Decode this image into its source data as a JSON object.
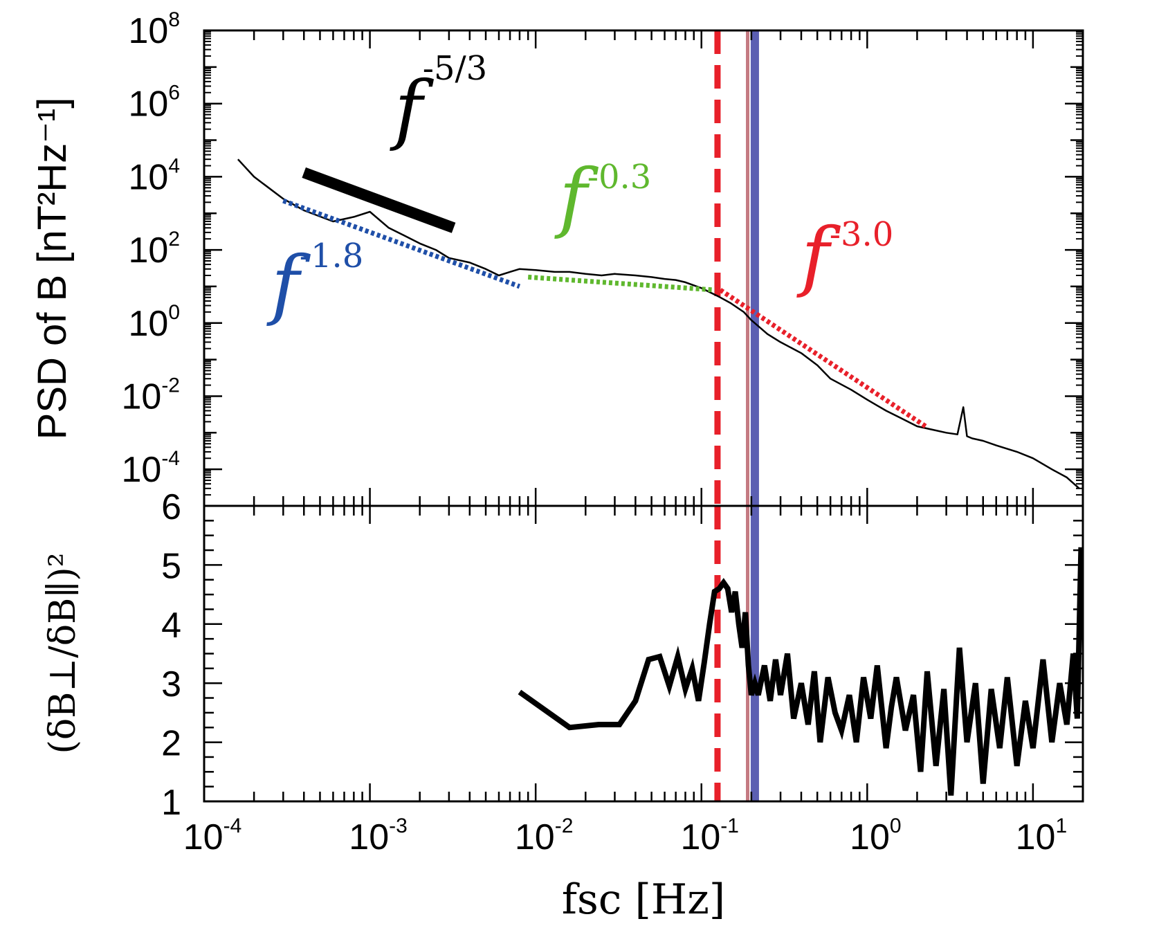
{
  "colors": {
    "blue_fit": "#1f4fa8",
    "green_fit": "#5fb82e",
    "red_fit": "#e8202a",
    "red_vline": "#e8202a",
    "pink_vline": "#c47a82",
    "purple_vline": "#5b5fb2",
    "psd_trace": "#000000"
  },
  "chart_data": [
    {
      "type": "line",
      "panel": "top",
      "ylabel": "PSD of B [nT²Hz⁻¹]",
      "xscale": "log",
      "yscale": "log",
      "xlim": [
        0.0001,
        20
      ],
      "ylim": [
        1e-05,
        100000000
      ],
      "yticks": [
        {
          "base": "10",
          "exp": "8",
          "value": 100000000
        },
        {
          "base": "10",
          "exp": "6",
          "value": 1000000
        },
        {
          "base": "10",
          "exp": "4",
          "value": 10000
        },
        {
          "base": "10",
          "exp": "2",
          "value": 100
        },
        {
          "base": "10",
          "exp": "0",
          "value": 1
        },
        {
          "base": "10",
          "exp": "-2",
          "value": 0.01
        },
        {
          "base": "10",
          "exp": "-4",
          "value": 0.0001
        }
      ],
      "series": [
        {
          "color": "#000000",
          "x": [
            0.00016,
            0.0002,
            0.0003,
            0.0004,
            0.0006,
            0.0008,
            0.001,
            0.0013,
            0.0016,
            0.002,
            0.0025,
            0.003,
            0.004,
            0.005,
            0.006,
            0.007,
            0.008,
            0.01,
            0.013,
            0.016,
            0.02,
            0.025,
            0.03,
            0.04,
            0.05,
            0.06,
            0.07,
            0.08,
            0.1,
            0.12,
            0.13,
            0.15,
            0.18,
            0.2,
            0.25,
            0.3,
            0.4,
            0.5,
            0.6,
            0.8,
            1.0,
            1.3,
            1.6,
            2.0,
            2.5,
            3.0,
            3.5,
            3.8,
            4.0,
            4.3,
            5.0,
            6.0,
            8.0,
            10.0,
            13.0,
            16.0,
            19.0
          ],
          "y": [
            30000,
            10000,
            2500,
            1200,
            600,
            800,
            1100,
            400,
            250,
            150,
            100,
            60,
            45,
            30,
            20,
            25,
            30,
            28,
            25,
            25,
            22,
            20,
            22,
            20,
            18,
            16,
            15,
            13,
            9,
            6,
            5,
            3.5,
            2.0,
            1.2,
            0.5,
            0.3,
            0.15,
            0.07,
            0.03,
            0.015,
            0.008,
            0.004,
            0.0025,
            0.0015,
            0.0012,
            0.001,
            0.0009,
            0.005,
            0.0008,
            0.0007,
            0.0006,
            0.00045,
            0.0003,
            0.0002,
            0.0001,
            6e-05,
            3e-05
          ]
        },
        {
          "name": "f^-1.8",
          "color": "#1f4fa8",
          "style": "dotted",
          "x": [
            0.0003,
            0.008
          ],
          "y": [
            2200,
            10
          ]
        },
        {
          "name": "f^-0.3",
          "color": "#5fb82e",
          "style": "dotted",
          "x": [
            0.009,
            0.12
          ],
          "y": [
            18,
            8
          ]
        },
        {
          "name": "f^-3.0",
          "color": "#e8202a",
          "style": "dotted",
          "x": [
            0.13,
            2.3
          ],
          "y": [
            8,
            0.0014
          ]
        },
        {
          "name": "f^-5/3",
          "color": "#000000",
          "style": "thick",
          "x": [
            0.0004,
            0.0032
          ],
          "y": [
            13000,
            400
          ]
        }
      ],
      "annotations": [
        {
          "text": "f",
          "sup": "-5/3",
          "color": "#000000"
        },
        {
          "text": "f",
          "sup": "-1.8",
          "color": "#1f4fa8"
        },
        {
          "text": "f",
          "sup": "-0.3",
          "color": "#5fb82e"
        },
        {
          "text": "f",
          "sup": "-3.0",
          "color": "#e8202a"
        }
      ],
      "vlines": [
        {
          "x": 0.125,
          "color": "#e8202a",
          "style": "dashed"
        },
        {
          "x": 0.19,
          "color": "#c47a82",
          "style": "solid"
        },
        {
          "x": 0.21,
          "color": "#5b5fb2",
          "style": "solid"
        }
      ]
    },
    {
      "type": "line",
      "panel": "bottom",
      "ylabel": "(δB⊥/δB∥)²",
      "xlabel": "fsc [Hz]",
      "xscale": "log",
      "xlim": [
        0.0001,
        20
      ],
      "ylim": [
        1,
        6
      ],
      "yticks": [
        "6",
        "5",
        "4",
        "3",
        "2",
        "1"
      ],
      "xticks": [
        {
          "base": "10",
          "exp": "-4",
          "value": 0.0001
        },
        {
          "base": "10",
          "exp": "-3",
          "value": 0.001
        },
        {
          "base": "10",
          "exp": "-2",
          "value": 0.01
        },
        {
          "base": "10",
          "exp": "-1",
          "value": 0.1
        },
        {
          "base": "10",
          "exp": "0",
          "value": 1
        },
        {
          "base": "10",
          "exp": "1",
          "value": 10
        }
      ],
      "series": [
        {
          "color": "#000000",
          "x": [
            0.008,
            0.016,
            0.024,
            0.032,
            0.04,
            0.048,
            0.056,
            0.064,
            0.072,
            0.08,
            0.088,
            0.096,
            0.104,
            0.112,
            0.12,
            0.128,
            0.136,
            0.144,
            0.152,
            0.16,
            0.168,
            0.176,
            0.184,
            0.192,
            0.2,
            0.21,
            0.22,
            0.24,
            0.26,
            0.28,
            0.3,
            0.33,
            0.36,
            0.4,
            0.44,
            0.48,
            0.52,
            0.58,
            0.64,
            0.7,
            0.78,
            0.86,
            0.95,
            1.05,
            1.15,
            1.3,
            1.4,
            1.5,
            1.7,
            1.9,
            2.1,
            2.3,
            2.6,
            2.9,
            3.2,
            3.6,
            4.0,
            4.5,
            5.0,
            5.6,
            6.3,
            7.0,
            8.0,
            9.0,
            10.0,
            11.5,
            13.0,
            14.5,
            16.0,
            17.5,
            18.5,
            19.5
          ],
          "y": [
            2.85,
            2.25,
            2.3,
            2.3,
            2.7,
            3.4,
            3.45,
            2.95,
            3.45,
            2.9,
            3.25,
            2.7,
            3.35,
            4.0,
            4.55,
            4.6,
            4.7,
            4.6,
            4.2,
            4.55,
            4.0,
            3.6,
            4.2,
            3.3,
            2.8,
            3.0,
            2.8,
            3.3,
            2.7,
            3.4,
            2.8,
            3.5,
            2.4,
            3.0,
            2.3,
            3.2,
            2.0,
            3.1,
            2.5,
            2.2,
            2.8,
            2.0,
            3.1,
            2.4,
            3.3,
            1.9,
            2.6,
            3.1,
            2.2,
            2.8,
            1.5,
            3.2,
            1.6,
            2.9,
            1.1,
            3.6,
            2.0,
            3.0,
            1.3,
            2.9,
            1.9,
            3.1,
            1.6,
            2.7,
            1.9,
            3.4,
            2.0,
            3.0,
            2.3,
            3.5,
            2.4,
            5.3
          ]
        }
      ],
      "vlines": [
        {
          "x": 0.125,
          "color": "#e8202a",
          "style": "dashed"
        },
        {
          "x": 0.19,
          "color": "#c47a82",
          "style": "solid"
        },
        {
          "x": 0.21,
          "color": "#5b5fb2",
          "style": "solid"
        }
      ]
    }
  ]
}
